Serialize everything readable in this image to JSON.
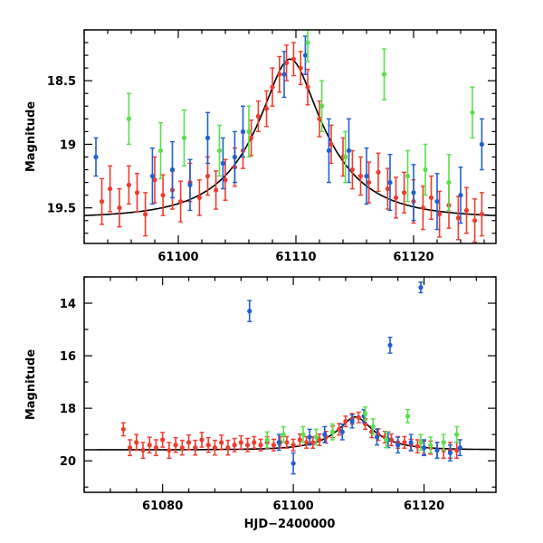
{
  "chart_data": [
    {
      "id": "top",
      "type": "scatter",
      "title": "",
      "xlabel": "",
      "ylabel": "Magnitude",
      "xlim": [
        61092,
        61127
      ],
      "ylim": [
        19.78,
        18.1
      ],
      "y_inverted": true,
      "grid": false,
      "x_ticks": [
        61100,
        61110,
        61120
      ],
      "x_tick_labels": [
        "61100",
        "61110",
        "61120"
      ],
      "y_ticks": [
        18.5,
        19,
        19.5
      ],
      "y_tick_labels": [
        "18.5",
        "19",
        "19.5"
      ],
      "model_curve": {
        "peak_time": 61109.5,
        "peak_mag": 18.33,
        "baseline_mag": 19.58,
        "tE": 6.0
      },
      "series": [
        {
          "name": "red",
          "color": "#f03a2c",
          "points": [
            [
              61093.5,
              19.45,
              0.18
            ],
            [
              61094.2,
              19.35,
              0.18
            ],
            [
              61095.0,
              19.5,
              0.15
            ],
            [
              61095.8,
              19.32,
              0.15
            ],
            [
              61096.5,
              19.38,
              0.15
            ],
            [
              61097.2,
              19.55,
              0.17
            ],
            [
              61098.0,
              19.28,
              0.18
            ],
            [
              61098.7,
              19.4,
              0.16
            ],
            [
              61099.5,
              19.36,
              0.15
            ],
            [
              61100.2,
              19.45,
              0.16
            ],
            [
              61101.0,
              19.3,
              0.15
            ],
            [
              61101.8,
              19.42,
              0.14
            ],
            [
              61102.5,
              19.25,
              0.15
            ],
            [
              61103.2,
              19.36,
              0.15
            ],
            [
              61104.0,
              19.28,
              0.16
            ],
            [
              61104.8,
              19.18,
              0.15
            ],
            [
              61105.5,
              19.05,
              0.14
            ],
            [
              61106.2,
              18.95,
              0.14
            ],
            [
              61106.8,
              18.78,
              0.12
            ],
            [
              61107.5,
              18.72,
              0.14
            ],
            [
              61108.0,
              18.55,
              0.15
            ],
            [
              61108.6,
              18.45,
              0.14
            ],
            [
              61109.2,
              18.36,
              0.14
            ],
            [
              61109.8,
              18.33,
              0.13
            ],
            [
              61110.4,
              18.4,
              0.13
            ],
            [
              61111.0,
              18.55,
              0.14
            ],
            [
              61112.0,
              18.8,
              0.14
            ],
            [
              61113.0,
              19.0,
              0.15
            ],
            [
              61114.0,
              19.1,
              0.15
            ],
            [
              61114.8,
              19.2,
              0.15
            ],
            [
              61115.5,
              19.25,
              0.15
            ],
            [
              61116.2,
              19.3,
              0.16
            ],
            [
              61117.0,
              19.22,
              0.15
            ],
            [
              61117.8,
              19.35,
              0.16
            ],
            [
              61118.5,
              19.42,
              0.16
            ],
            [
              61119.2,
              19.38,
              0.16
            ],
            [
              61120.0,
              19.45,
              0.17
            ],
            [
              61120.8,
              19.5,
              0.17
            ],
            [
              61121.5,
              19.42,
              0.17
            ],
            [
              61122.2,
              19.55,
              0.18
            ],
            [
              61123.0,
              19.48,
              0.18
            ],
            [
              61123.8,
              19.58,
              0.17
            ],
            [
              61124.5,
              19.52,
              0.18
            ],
            [
              61125.2,
              19.6,
              0.17
            ],
            [
              61125.8,
              19.55,
              0.17
            ]
          ]
        },
        {
          "name": "blue",
          "color": "#1f5fd1",
          "points": [
            [
              61093.0,
              19.1,
              0.15
            ],
            [
              61097.8,
              19.25,
              0.22
            ],
            [
              61099.5,
              19.2,
              0.22
            ],
            [
              61101.0,
              19.32,
              0.2
            ],
            [
              61102.5,
              18.95,
              0.2
            ],
            [
              61103.8,
              19.15,
              0.2
            ],
            [
              61104.8,
              19.1,
              0.2
            ],
            [
              61105.5,
              18.9,
              0.2
            ],
            [
              61109.0,
              18.45,
              0.18
            ],
            [
              61110.8,
              18.3,
              0.15
            ],
            [
              61112.8,
              19.05,
              0.25
            ],
            [
              61114.5,
              19.05,
              0.25
            ],
            [
              61116.0,
              19.25,
              0.22
            ],
            [
              61118.0,
              19.3,
              0.22
            ],
            [
              61120.0,
              19.38,
              0.22
            ],
            [
              61122.0,
              19.45,
              0.22
            ],
            [
              61124.0,
              19.4,
              0.22
            ],
            [
              61125.8,
              19.0,
              0.2
            ]
          ]
        },
        {
          "name": "green",
          "color": "#58e04a",
          "points": [
            [
              61095.8,
              18.8,
              0.2
            ],
            [
              61098.5,
              19.05,
              0.22
            ],
            [
              61100.5,
              18.95,
              0.22
            ],
            [
              61103.5,
              19.05,
              0.2
            ],
            [
              61106.0,
              18.9,
              0.2
            ],
            [
              61111.0,
              18.2,
              0.15
            ],
            [
              61112.2,
              18.7,
              0.2
            ],
            [
              61114.2,
              19.1,
              0.2
            ],
            [
              61117.5,
              18.45,
              0.2
            ],
            [
              61119.5,
              19.25,
              0.2
            ],
            [
              61121.0,
              19.2,
              0.2
            ],
            [
              61123.0,
              19.3,
              0.22
            ],
            [
              61125.0,
              18.75,
              0.2
            ]
          ]
        }
      ]
    },
    {
      "id": "bottom",
      "type": "scatter",
      "title": "",
      "xlabel": "HJD−2400000",
      "ylabel": "Magnitude",
      "xlim": [
        61068,
        61131
      ],
      "ylim": [
        21.2,
        13.0
      ],
      "y_inverted": true,
      "grid": false,
      "x_ticks": [
        61080,
        61100,
        61120
      ],
      "x_tick_labels": [
        "61080",
        "61100",
        "61120"
      ],
      "y_ticks": [
        14,
        16,
        18,
        20
      ],
      "y_tick_labels": [
        "14",
        "16",
        "18",
        "20"
      ],
      "model_curve": {
        "peak_time": 61109.5,
        "peak_mag": 18.33,
        "baseline_mag": 19.58,
        "tE": 6.0
      },
      "series": [
        {
          "name": "red",
          "color": "#f03a2c",
          "points": [
            [
              61074,
              18.8,
              0.25
            ],
            [
              61075,
              19.5,
              0.3
            ],
            [
              61076,
              19.3,
              0.3
            ],
            [
              61077,
              19.6,
              0.3
            ],
            [
              61078,
              19.4,
              0.3
            ],
            [
              61079,
              19.5,
              0.3
            ],
            [
              61080,
              19.2,
              0.28
            ],
            [
              61081,
              19.6,
              0.3
            ],
            [
              61082,
              19.4,
              0.28
            ],
            [
              61083,
              19.5,
              0.28
            ],
            [
              61084,
              19.3,
              0.28
            ],
            [
              61085,
              19.5,
              0.28
            ],
            [
              61086,
              19.2,
              0.28
            ],
            [
              61087,
              19.4,
              0.28
            ],
            [
              61088,
              19.5,
              0.28
            ],
            [
              61089,
              19.3,
              0.28
            ],
            [
              61090,
              19.5,
              0.28
            ],
            [
              61091,
              19.4,
              0.25
            ],
            [
              61092,
              19.3,
              0.25
            ],
            [
              61093,
              19.4,
              0.25
            ],
            [
              61094,
              19.3,
              0.22
            ],
            [
              61095,
              19.4,
              0.22
            ],
            [
              61096,
              19.3,
              0.22
            ],
            [
              61097,
              19.4,
              0.22
            ],
            [
              61098,
              19.3,
              0.22
            ],
            [
              61099,
              19.3,
              0.22
            ],
            [
              61100,
              19.4,
              0.22
            ],
            [
              61101,
              19.2,
              0.22
            ],
            [
              61102,
              19.3,
              0.22
            ],
            [
              61103,
              19.3,
              0.22
            ],
            [
              61104,
              19.2,
              0.22
            ],
            [
              61105,
              19.1,
              0.22
            ],
            [
              61106,
              18.9,
              0.22
            ],
            [
              61107,
              18.8,
              0.22
            ],
            [
              61108,
              18.5,
              0.2
            ],
            [
              61109,
              18.4,
              0.2
            ],
            [
              61110,
              18.35,
              0.2
            ],
            [
              61111,
              18.6,
              0.2
            ],
            [
              61112,
              18.9,
              0.22
            ],
            [
              61113,
              19.0,
              0.22
            ],
            [
              61114,
              19.1,
              0.22
            ],
            [
              61115,
              19.2,
              0.22
            ],
            [
              61116,
              19.3,
              0.22
            ],
            [
              61117,
              19.3,
              0.22
            ],
            [
              61118,
              19.4,
              0.22
            ],
            [
              61119,
              19.45,
              0.25
            ],
            [
              61120,
              19.5,
              0.25
            ],
            [
              61121,
              19.5,
              0.25
            ],
            [
              61122,
              19.6,
              0.3
            ],
            [
              61123,
              19.6,
              0.3
            ],
            [
              61124,
              19.6,
              0.3
            ],
            [
              61125,
              19.6,
              0.3
            ]
          ]
        },
        {
          "name": "blue",
          "color": "#1f5fd1",
          "points": [
            [
              61093.3,
              14.3,
              0.4
            ],
            [
              61114.8,
              15.6,
              0.3
            ],
            [
              61119.5,
              13.4,
              0.2
            ],
            [
              61097.8,
              19.3,
              0.3
            ],
            [
              61100.0,
              20.1,
              0.4
            ],
            [
              61102.5,
              19.1,
              0.3
            ],
            [
              61104.8,
              19.0,
              0.3
            ],
            [
              61107.5,
              18.9,
              0.3
            ],
            [
              61109.0,
              18.5,
              0.25
            ],
            [
              61110.8,
              18.3,
              0.25
            ],
            [
              61112.8,
              19.1,
              0.3
            ],
            [
              61114.5,
              19.2,
              0.3
            ],
            [
              61116.0,
              19.4,
              0.3
            ],
            [
              61118.0,
              19.3,
              0.3
            ],
            [
              61120.0,
              19.5,
              0.3
            ],
            [
              61122.0,
              19.6,
              0.3
            ],
            [
              61124.0,
              19.7,
              0.3
            ],
            [
              61125.5,
              19.5,
              0.3
            ]
          ]
        },
        {
          "name": "green",
          "color": "#58e04a",
          "points": [
            [
              61096.0,
              19.2,
              0.3
            ],
            [
              61098.5,
              19.0,
              0.3
            ],
            [
              61101.5,
              19.0,
              0.3
            ],
            [
              61103.5,
              19.1,
              0.3
            ],
            [
              61106.0,
              18.9,
              0.3
            ],
            [
              61111.0,
              18.2,
              0.25
            ],
            [
              61112.2,
              18.7,
              0.3
            ],
            [
              61114.2,
              19.2,
              0.3
            ],
            [
              61117.5,
              18.3,
              0.25
            ],
            [
              61119.5,
              19.3,
              0.3
            ],
            [
              61121.0,
              19.4,
              0.3
            ],
            [
              61123.0,
              19.3,
              0.3
            ],
            [
              61125.0,
              19.0,
              0.3
            ]
          ]
        }
      ]
    }
  ]
}
